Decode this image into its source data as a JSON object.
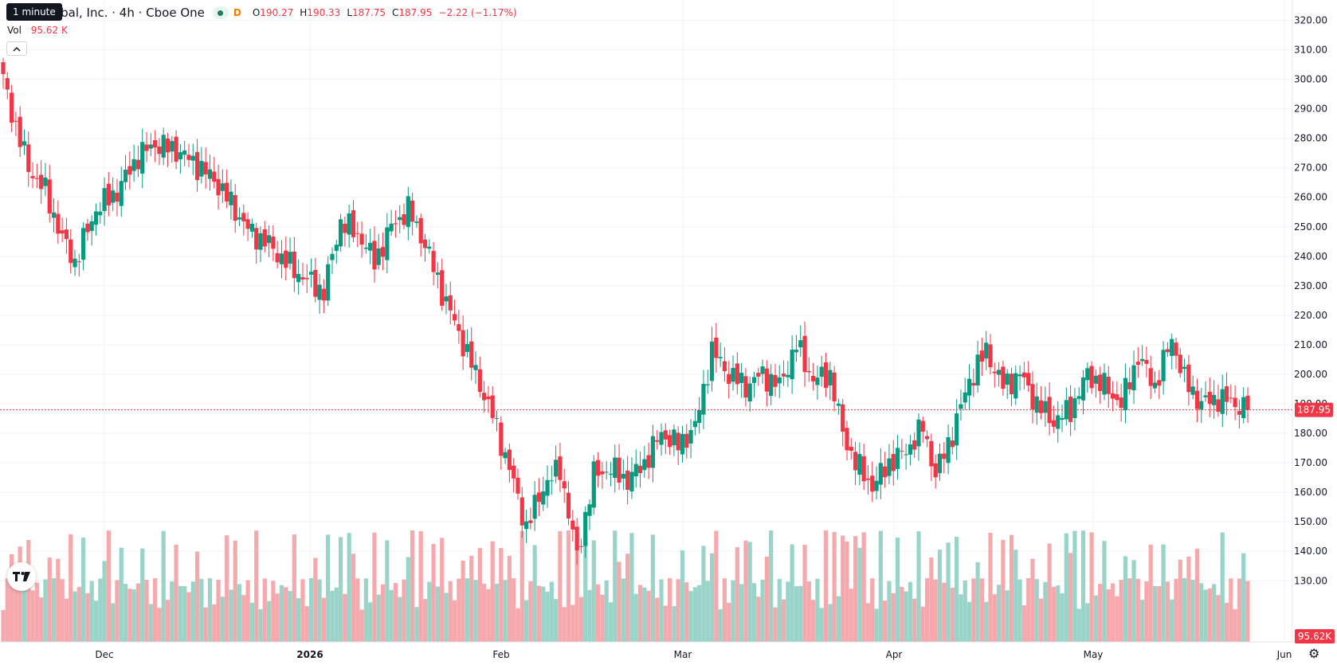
{
  "header": {
    "title": "Cboe Global, Inc. · 4h · Cboe One",
    "interval_badge": "D",
    "o_label": "O",
    "o_value": "190.27",
    "h_label": "H",
    "h_value": "190.33",
    "l_label": "L",
    "l_value": "187.75",
    "c_label": "C",
    "c_value": "187.95",
    "change": "−2.22 (−1.17%)",
    "tooltip": "1 minute"
  },
  "volume": {
    "label": "Vol",
    "value": "95.62 K"
  },
  "icons": {
    "collapse": "chevron-up-icon",
    "logo": "tradingview-logo",
    "settings": "gear-icon"
  },
  "colors": {
    "up": "#089981",
    "down": "#f23645",
    "vol_up": "#9ad4c9",
    "vol_down": "#f5a9ad"
  },
  "chart_data": {
    "type": "candlestick",
    "title": "Cboe Global, Inc. · 4h · Cboe One",
    "ylim": [
      124,
      322
    ],
    "y_ticks": [
      130,
      140,
      150,
      160,
      170,
      180,
      190,
      200,
      210,
      220,
      230,
      240,
      250,
      260,
      270,
      280,
      290,
      300,
      310,
      320
    ],
    "y_tick_labels": [
      "130.00",
      "140.00",
      "150.00",
      "160.00",
      "170.00",
      "180.00",
      "190.00",
      "200.00",
      "210.00",
      "220.00",
      "230.00",
      "240.00",
      "250.00",
      "260.00",
      "270.00",
      "280.00",
      "290.00",
      "300.00",
      "310.00",
      "320.00"
    ],
    "x_labels": [
      "Dec",
      "2026",
      "Feb",
      "Mar",
      "Apr",
      "May",
      "Jun"
    ],
    "last_price": 187.95,
    "last_price_label": "187.95",
    "last_volume_label": "95.62K",
    "price_waypoints": [
      [
        0,
        300
      ],
      [
        3,
        284
      ],
      [
        6,
        270
      ],
      [
        10,
        262
      ],
      [
        14,
        246
      ],
      [
        17,
        238
      ],
      [
        22,
        256
      ],
      [
        27,
        262
      ],
      [
        32,
        274
      ],
      [
        36,
        278
      ],
      [
        41,
        276
      ],
      [
        45,
        272
      ],
      [
        50,
        266
      ],
      [
        54,
        258
      ],
      [
        58,
        249
      ],
      [
        63,
        244
      ],
      [
        67,
        238
      ],
      [
        71,
        233
      ],
      [
        76,
        228
      ],
      [
        80,
        252
      ],
      [
        85,
        246
      ],
      [
        88,
        238
      ],
      [
        92,
        250
      ],
      [
        96,
        256
      ],
      [
        100,
        244
      ],
      [
        104,
        228
      ],
      [
        108,
        214
      ],
      [
        112,
        200
      ],
      [
        116,
        186
      ],
      [
        120,
        168
      ],
      [
        124,
        148
      ],
      [
        128,
        162
      ],
      [
        132,
        168
      ],
      [
        136,
        138
      ],
      [
        140,
        166
      ],
      [
        144,
        168
      ],
      [
        148,
        164
      ],
      [
        152,
        170
      ],
      [
        156,
        180
      ],
      [
        160,
        176
      ],
      [
        164,
        182
      ],
      [
        168,
        208
      ],
      [
        172,
        200
      ],
      [
        176,
        196
      ],
      [
        180,
        200
      ],
      [
        184,
        196
      ],
      [
        188,
        210
      ],
      [
        192,
        198
      ],
      [
        196,
        200
      ],
      [
        199,
        180
      ],
      [
        202,
        170
      ],
      [
        206,
        162
      ],
      [
        210,
        170
      ],
      [
        214,
        174
      ],
      [
        218,
        182
      ],
      [
        221,
        166
      ],
      [
        225,
        180
      ],
      [
        229,
        198
      ],
      [
        233,
        208
      ],
      [
        237,
        196
      ],
      [
        241,
        200
      ],
      [
        245,
        190
      ],
      [
        249,
        184
      ],
      [
        253,
        188
      ],
      [
        257,
        200
      ],
      [
        261,
        196
      ],
      [
        265,
        190
      ],
      [
        269,
        206
      ],
      [
        273,
        196
      ],
      [
        277,
        212
      ],
      [
        280,
        198
      ],
      [
        284,
        190
      ],
      [
        288,
        192
      ],
      [
        292,
        190
      ],
      [
        295,
        188
      ]
    ],
    "volume_ylim": [
      0,
      40000
    ]
  }
}
